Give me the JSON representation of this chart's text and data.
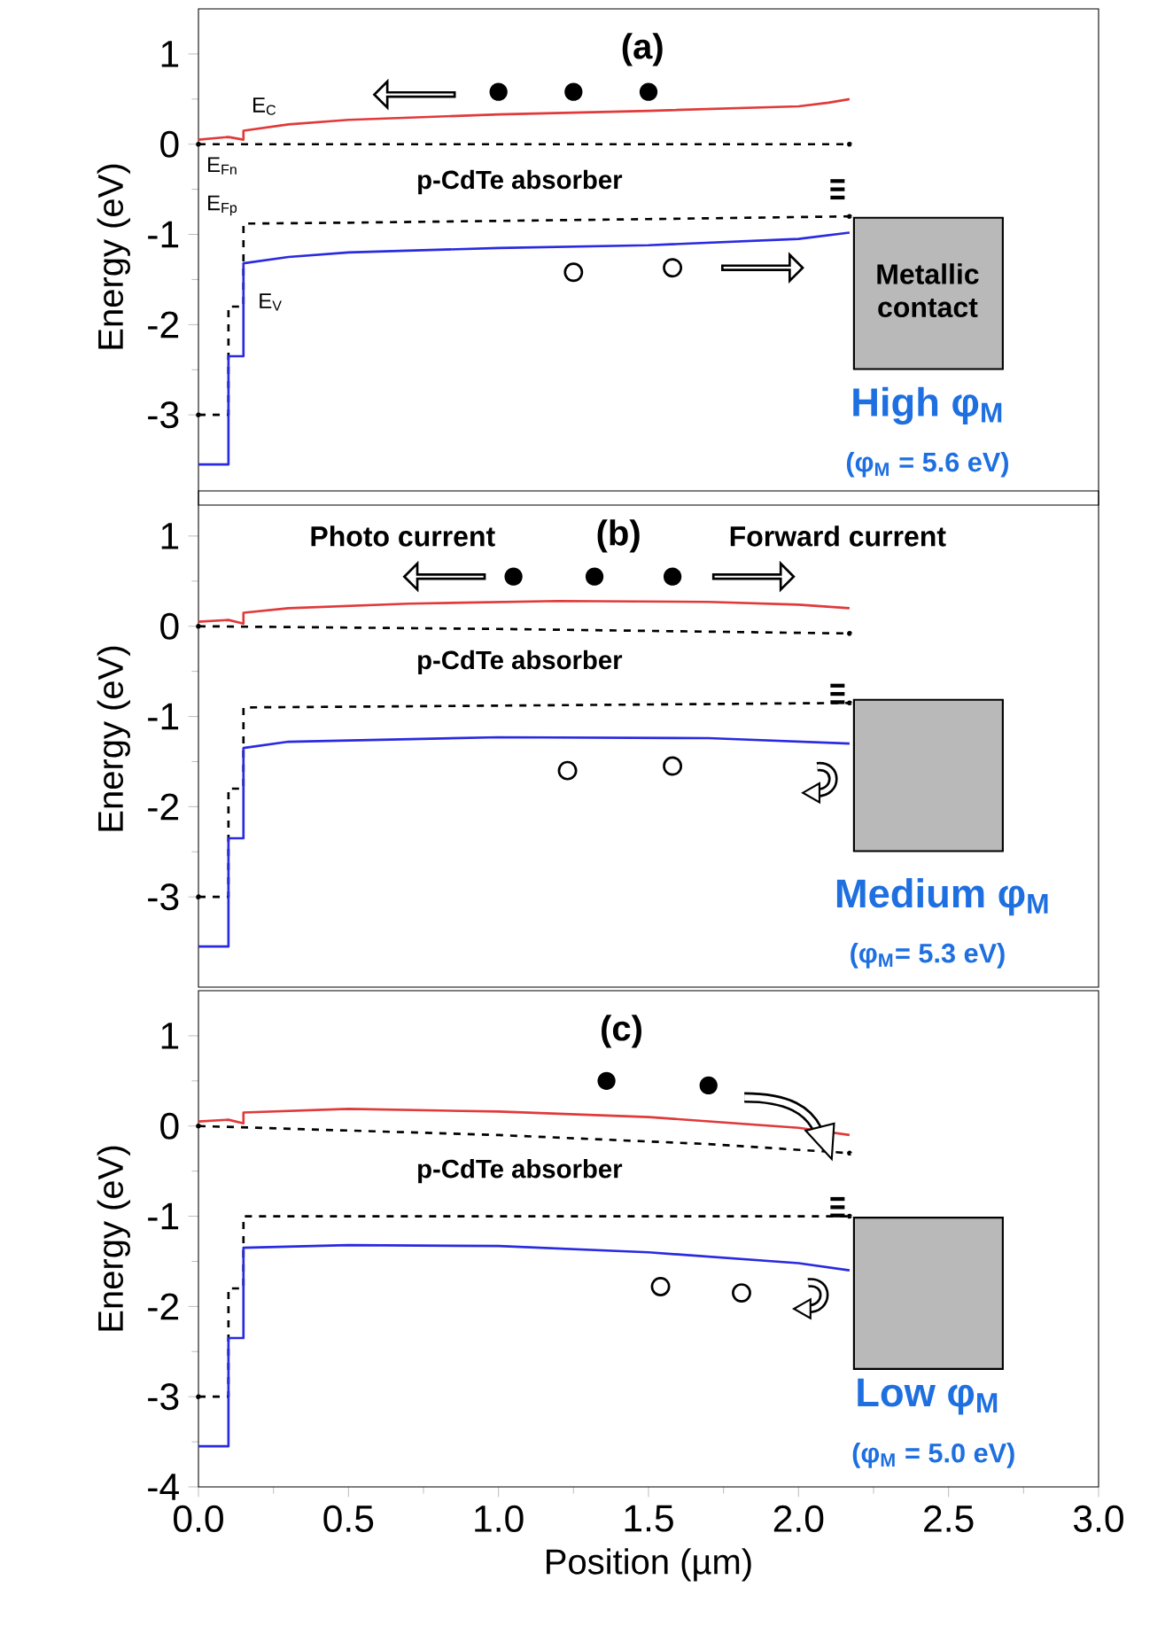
{
  "chart_data": [
    {
      "type": "line",
      "title": "(a)",
      "ylabel": "Energy (eV)",
      "xlim": [
        0,
        3
      ],
      "ylim": [
        -4,
        1.5
      ],
      "yticks": [
        -3,
        -2,
        -1,
        0,
        1
      ],
      "tick_labels": "y",
      "marker": "none",
      "annotations": [
        "p-CdTe absorber",
        "Metallic contact",
        "High φ$_{M}$",
        "(φ$_{M}$ = 5.6 eV)"
      ],
      "series": [
        {
          "name": "E$_{C}$",
          "color": "#e03a3a",
          "line_style": "solid",
          "x": [
            0,
            0.1,
            0.15,
            0.15,
            0.3,
            0.5,
            1.0,
            1.5,
            2.0,
            2.1,
            2.17
          ],
          "values": [
            0.05,
            0.08,
            0.05,
            0.15,
            0.22,
            0.27,
            0.33,
            0.37,
            0.42,
            0.46,
            0.5
          ]
        },
        {
          "name": "E$_{Fn}$",
          "color": "#000000",
          "line_style": "dashed",
          "x": [
            0,
            2.17
          ],
          "values": [
            0,
            0
          ]
        },
        {
          "name": "E$_{Fp}$",
          "color": "#000000",
          "line_style": "dashed",
          "x": [
            0,
            0.1,
            0.1,
            0.15,
            0.15,
            0.5,
            1.0,
            1.5,
            2.17
          ],
          "values": [
            -3.0,
            -3.0,
            -1.8,
            -1.8,
            -0.88,
            -0.87,
            -0.85,
            -0.83,
            -0.8
          ]
        },
        {
          "name": "E$_{V}$",
          "color": "#2a2ae0",
          "line_style": "solid",
          "x": [
            0,
            0.1,
            0.1,
            0.15,
            0.15,
            0.3,
            0.5,
            1.0,
            1.5,
            2.0,
            2.17
          ],
          "values": [
            -3.55,
            -3.55,
            -2.35,
            -2.35,
            -1.32,
            -1.25,
            -1.2,
            -1.15,
            -1.12,
            -1.05,
            -0.98
          ]
        }
      ]
    },
    {
      "type": "line",
      "title": "(b)",
      "ylabel": "Energy (eV)",
      "xlim": [
        0,
        3
      ],
      "ylim": [
        -4,
        1.5
      ],
      "yticks": [
        -3,
        -2,
        -1,
        0,
        1
      ],
      "tick_labels": "y",
      "marker": "none",
      "annotations": [
        "Photo current",
        "Forward current",
        "p-CdTe absorber",
        "Medium φ$_{M}$",
        "(φ$_{M}$= 5.3 eV)"
      ],
      "series": [
        {
          "color": "#e03a3a",
          "line_style": "solid",
          "x": [
            0,
            0.1,
            0.15,
            0.15,
            0.3,
            0.7,
            1.2,
            1.7,
            2.0,
            2.17
          ],
          "values": [
            0.05,
            0.07,
            0.03,
            0.15,
            0.2,
            0.25,
            0.28,
            0.27,
            0.24,
            0.2
          ]
        },
        {
          "color": "#000000",
          "line_style": "dashed",
          "x": [
            0,
            1.0,
            2.17
          ],
          "values": [
            0,
            -0.03,
            -0.08
          ]
        },
        {
          "color": "#000000",
          "line_style": "dashed",
          "x": [
            0,
            0.1,
            0.1,
            0.15,
            0.15,
            1.0,
            2.17
          ],
          "values": [
            -3.0,
            -3.0,
            -1.8,
            -1.8,
            -0.9,
            -0.88,
            -0.85
          ]
        },
        {
          "color": "#2a2ae0",
          "line_style": "solid",
          "x": [
            0,
            0.1,
            0.1,
            0.15,
            0.15,
            0.3,
            1.0,
            1.7,
            2.17
          ],
          "values": [
            -3.55,
            -3.55,
            -2.35,
            -2.35,
            -1.35,
            -1.28,
            -1.23,
            -1.24,
            -1.3
          ]
        }
      ]
    },
    {
      "type": "line",
      "title": "(c)",
      "ylabel": "Energy (eV)",
      "xlabel": "Position (µm)",
      "xlim": [
        0,
        3
      ],
      "ylim": [
        -4,
        1.5
      ],
      "yticks": [
        -4,
        -3,
        -2,
        -1,
        0,
        1
      ],
      "xticks": [
        {
          "value": 0,
          "label": "0.0"
        },
        {
          "value": 0.5,
          "label": "0.5"
        },
        {
          "value": 1,
          "label": "1.0"
        },
        {
          "value": 1.5,
          "label": "1.5"
        },
        {
          "value": 2,
          "label": "2.0"
        },
        {
          "value": 2.5,
          "label": "2.5"
        },
        {
          "value": 3,
          "label": "3.0"
        }
      ],
      "marker": "none",
      "annotations": [
        "p-CdTe absorber",
        "Low φ$_{M}$",
        "(φ$_{M}$ = 5.0 eV)"
      ],
      "series": [
        {
          "color": "#e03a3a",
          "line_style": "solid",
          "x": [
            0,
            0.1,
            0.15,
            0.15,
            0.5,
            1.0,
            1.5,
            2.0,
            2.17
          ],
          "values": [
            0.05,
            0.07,
            0.03,
            0.15,
            0.19,
            0.16,
            0.1,
            -0.02,
            -0.1
          ]
        },
        {
          "color": "#000000",
          "line_style": "dashed",
          "x": [
            0,
            1.0,
            1.7,
            2.17
          ],
          "values": [
            0,
            -0.1,
            -0.2,
            -0.3
          ]
        },
        {
          "color": "#000000",
          "line_style": "dashed",
          "x": [
            0,
            0.1,
            0.1,
            0.15,
            0.15,
            2.17
          ],
          "values": [
            -3.0,
            -3.0,
            -1.8,
            -1.8,
            -1.0,
            -1.0
          ]
        },
        {
          "color": "#2a2ae0",
          "line_style": "solid",
          "x": [
            0,
            0.1,
            0.1,
            0.15,
            0.15,
            0.5,
            1.0,
            1.5,
            2.0,
            2.17
          ],
          "values": [
            -3.55,
            -3.55,
            -2.35,
            -2.35,
            -1.35,
            -1.32,
            -1.33,
            -1.4,
            -1.52,
            -1.6
          ]
        }
      ]
    }
  ]
}
